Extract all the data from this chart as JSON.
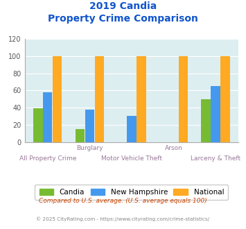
{
  "title_line1": "2019 Candia",
  "title_line2": "Property Crime Comparison",
  "categories": [
    "All Property Crime",
    "Burglary",
    "Motor Vehicle Theft",
    "Arson",
    "Larceny & Theft"
  ],
  "xlabel_top": [
    "",
    "Burglary",
    "",
    "Arson",
    ""
  ],
  "xlabel_bottom": [
    "All Property Crime",
    "",
    "Motor Vehicle Theft",
    "",
    "Larceny & Theft"
  ],
  "candia": [
    39,
    15,
    0,
    0,
    50
  ],
  "new_hampshire": [
    58,
    38,
    30,
    0,
    65
  ],
  "national": [
    100,
    100,
    100,
    100,
    100
  ],
  "color_candia": "#77bb33",
  "color_nh": "#4499ee",
  "color_national": "#ffaa22",
  "ylim": [
    0,
    120
  ],
  "yticks": [
    0,
    20,
    40,
    60,
    80,
    100,
    120
  ],
  "background_color": "#ddeef0",
  "title_color": "#1155cc",
  "xlabel_color": "#997799",
  "legend_label_candia": "Candia",
  "legend_label_nh": "New Hampshire",
  "legend_label_national": "National",
  "footnote1": "Compared to U.S. average. (U.S. average equals 100)",
  "footnote2": "© 2025 CityRating.com - https://www.cityrating.com/crime-statistics/",
  "footnote1_color": "#cc4400",
  "footnote2_color": "#888888"
}
